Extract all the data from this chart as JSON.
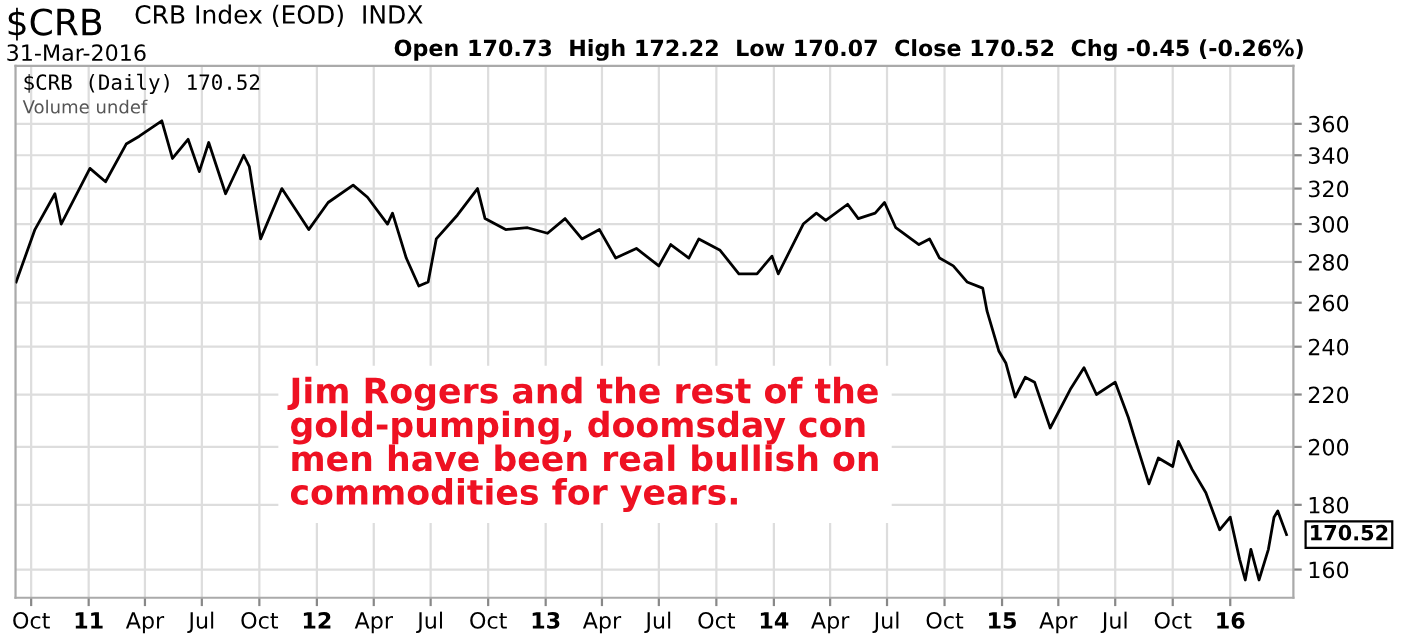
{
  "chart_data": {
    "type": "line",
    "title": "$CRB",
    "subtitle": "31-Mar-2016",
    "annotations": [
      "CRB Index (EOD)  INDX",
      "Open 170.73  High 172.22  Low 170.07  Close 170.52  Chg -0.45 (-0.26%)",
      "$CRB (Daily) 170.52",
      "Volume undef",
      "Jim Rogers and the rest of the\ngold-pumping, doomsday con\nmen have been real bullish on\ncommodities for years.",
      {
        "text": "170.52",
        "x": "2016-03-31",
        "y": 170.52
      }
    ],
    "x": [
      "2010-09-07",
      "2010-10-07",
      "2010-11-08",
      "2010-11-18",
      "2011-01-03",
      "2011-01-28",
      "2011-03-02",
      "2011-03-23",
      "2011-04-28",
      "2011-05-15",
      "2011-06-09",
      "2011-06-27",
      "2011-07-12",
      "2011-08-08",
      "2011-09-06",
      "2011-09-15",
      "2011-10-03",
      "2011-11-06",
      "2011-12-19",
      "2012-01-19",
      "2012-02-28",
      "2012-03-22",
      "2012-04-23",
      "2012-05-01",
      "2012-05-23",
      "2012-06-12",
      "2012-06-27",
      "2012-07-10",
      "2012-08-13",
      "2012-09-14",
      "2012-09-26",
      "2012-10-29",
      "2012-12-03",
      "2013-01-04",
      "2013-02-01",
      "2013-02-28",
      "2013-03-28",
      "2013-04-23",
      "2013-05-26",
      "2013-07-01",
      "2013-07-20",
      "2013-08-18",
      "2013-09-03",
      "2013-10-07",
      "2013-11-06",
      "2013-12-05",
      "2013-12-29",
      "2014-01-08",
      "2014-02-17",
      "2014-03-10",
      "2014-03-25",
      "2014-04-29",
      "2014-05-16",
      "2014-06-12",
      "2014-06-27",
      "2014-07-15",
      "2014-08-21",
      "2014-09-07",
      "2014-09-23",
      "2014-10-15",
      "2014-11-06",
      "2014-12-01",
      "2014-12-08",
      "2014-12-27",
      "2015-01-07",
      "2015-01-22",
      "2015-02-07",
      "2015-02-22",
      "2015-03-19",
      "2015-04-20",
      "2015-05-12",
      "2015-06-01",
      "2015-07-01",
      "2015-07-22",
      "2015-07-31",
      "2015-08-24",
      "2015-09-08",
      "2015-10-01",
      "2015-10-10",
      "2015-11-01",
      "2015-11-23",
      "2015-12-15",
      "2016-01-01",
      "2016-01-16",
      "2016-01-25",
      "2016-02-03",
      "2016-02-16",
      "2016-03-02",
      "2016-03-11",
      "2016-03-17",
      "2016-03-31"
    ],
    "series": [
      {
        "color": "#000000",
        "values": [
          270,
          297,
          317,
          300,
          332,
          324,
          347,
          352,
          362,
          338,
          350,
          330,
          348,
          317,
          340,
          333,
          292,
          320,
          297,
          312,
          322,
          315,
          300,
          306,
          282,
          268,
          270,
          292,
          305,
          320,
          303,
          297,
          298,
          295,
          303,
          292,
          297,
          282,
          287,
          278,
          289,
          282,
          292,
          286,
          274,
          274,
          283,
          274,
          300,
          306,
          302,
          311,
          303,
          306,
          312,
          298,
          289,
          292,
          282,
          278,
          270,
          267,
          256,
          238,
          233,
          219,
          227,
          225,
          207,
          222,
          231,
          220,
          225,
          211,
          204,
          187,
          196,
          193,
          202,
          192,
          184,
          172,
          176,
          163,
          157,
          166,
          157,
          166,
          176,
          178,
          170.52
        ]
      }
    ],
    "log": "y",
    "ylim": [
      152,
      400
    ],
    "yticks": [
      160,
      180,
      200,
      220,
      240,
      260,
      280,
      300,
      320,
      340,
      360
    ],
    "xlim": [
      "2010-09-06",
      "2016-04-11"
    ],
    "xticks": [
      {
        "value": "2010-10-01",
        "label": "Oct"
      },
      {
        "value": "2011-01-01",
        "label": "11"
      },
      {
        "value": "2011-04-01",
        "label": "Apr"
      },
      {
        "value": "2011-07-01",
        "label": "Jul"
      },
      {
        "value": "2011-10-01",
        "label": "Oct"
      },
      {
        "value": "2012-01-01",
        "label": "12"
      },
      {
        "value": "2012-04-01",
        "label": "Apr"
      },
      {
        "value": "2012-07-01",
        "label": "Jul"
      },
      {
        "value": "2012-10-01",
        "label": "Oct"
      },
      {
        "value": "2013-01-01",
        "label": "13"
      },
      {
        "value": "2013-04-01",
        "label": "Apr"
      },
      {
        "value": "2013-07-01",
        "label": "Jul"
      },
      {
        "value": "2013-10-01",
        "label": "Oct"
      },
      {
        "value": "2014-01-01",
        "label": "14"
      },
      {
        "value": "2014-04-01",
        "label": "Apr"
      },
      {
        "value": "2014-07-01",
        "label": "Jul"
      },
      {
        "value": "2014-10-01",
        "label": "Oct"
      },
      {
        "value": "2015-01-01",
        "label": "15"
      },
      {
        "value": "2015-04-01",
        "label": "Apr"
      },
      {
        "value": "2015-07-01",
        "label": "Jul"
      },
      {
        "value": "2015-10-01",
        "label": "Oct"
      },
      {
        "value": "2016-01-01",
        "label": "16"
      }
    ],
    "grid": true
  }
}
